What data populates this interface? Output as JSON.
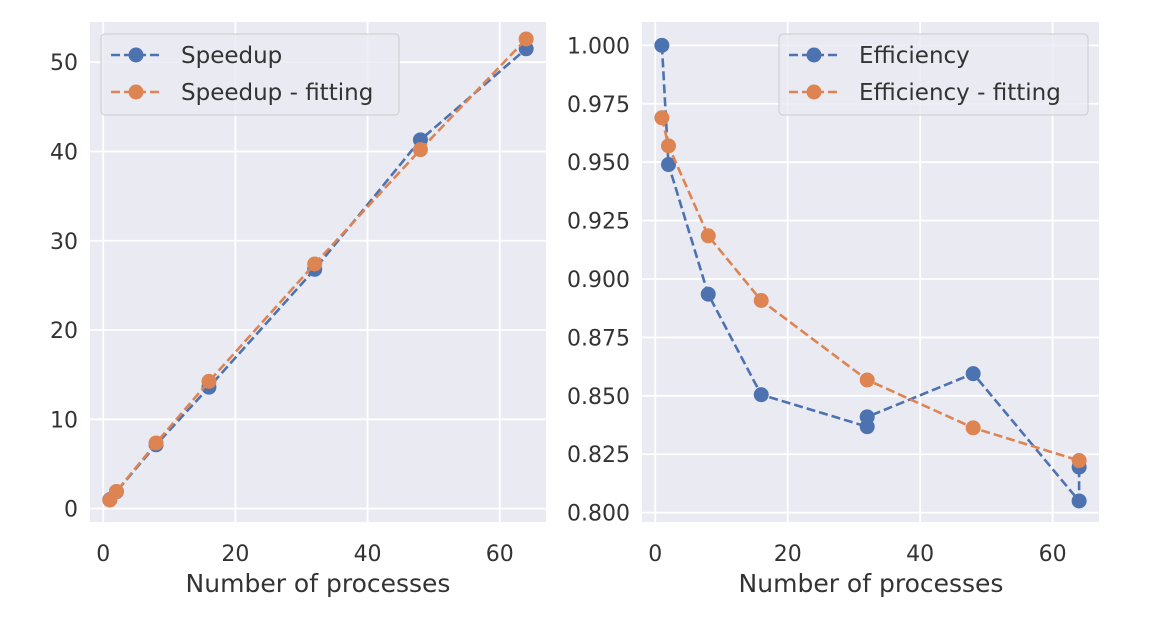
{
  "chart_data": [
    {
      "type": "line",
      "title": "",
      "xlabel": "Number of processes",
      "ylabel": "",
      "xlim": [
        -2,
        67
      ],
      "ylim": [
        -1.5,
        54.5
      ],
      "xticks": [
        0,
        20,
        40,
        60
      ],
      "xtick_labels": [
        "0",
        "20",
        "40",
        "60"
      ],
      "yticks": [
        0,
        10,
        20,
        30,
        40,
        50
      ],
      "ytick_labels": [
        "0",
        "10",
        "20",
        "30",
        "40",
        "50"
      ],
      "grid": true,
      "legend_position": "upper-left",
      "series": [
        {
          "name": "Speedup",
          "color": "#4c72b0",
          "linestyle": "dashed",
          "marker": "circle",
          "x": [
            1,
            2,
            8,
            16,
            32,
            48,
            64
          ],
          "y": [
            1.0,
            1.9,
            7.15,
            13.6,
            26.8,
            41.3,
            51.5
          ]
        },
        {
          "name": "Speedup - fitting",
          "color": "#dd8452",
          "linestyle": "dashed",
          "marker": "circle",
          "x": [
            1,
            2,
            8,
            16,
            32,
            48,
            64
          ],
          "y": [
            0.97,
            1.92,
            7.35,
            14.25,
            27.4,
            40.2,
            52.6
          ]
        }
      ]
    },
    {
      "type": "line",
      "title": "",
      "xlabel": "Number of processes",
      "ylabel": "",
      "xlim": [
        -2,
        67
      ],
      "ylim": [
        0.796,
        1.01
      ],
      "xticks": [
        0,
        20,
        40,
        60
      ],
      "xtick_labels": [
        "0",
        "20",
        "40",
        "60"
      ],
      "yticks": [
        0.8,
        0.825,
        0.85,
        0.875,
        0.9,
        0.925,
        0.95,
        0.975,
        1.0
      ],
      "ytick_labels": [
        "0.800",
        "0.825",
        "0.850",
        "0.875",
        "0.900",
        "0.925",
        "0.950",
        "0.975",
        "1.000"
      ],
      "grid": true,
      "legend_position": "upper-right",
      "series": [
        {
          "name": "Efficiency",
          "color": "#4c72b0",
          "linestyle": "dashed",
          "marker": "circle",
          "x": [
            1,
            2,
            8,
            16,
            32,
            32,
            48,
            64,
            64
          ],
          "y": [
            1.0,
            0.949,
            0.8935,
            0.8505,
            0.8368,
            0.841,
            0.8595,
            0.805,
            0.8195
          ]
        },
        {
          "name": "Efficiency - fitting",
          "color": "#dd8452",
          "linestyle": "dashed",
          "marker": "circle",
          "x": [
            1,
            2,
            8,
            16,
            32,
            48,
            64
          ],
          "y": [
            0.969,
            0.957,
            0.9185,
            0.8908,
            0.8568,
            0.8363,
            0.8223
          ]
        }
      ]
    }
  ]
}
